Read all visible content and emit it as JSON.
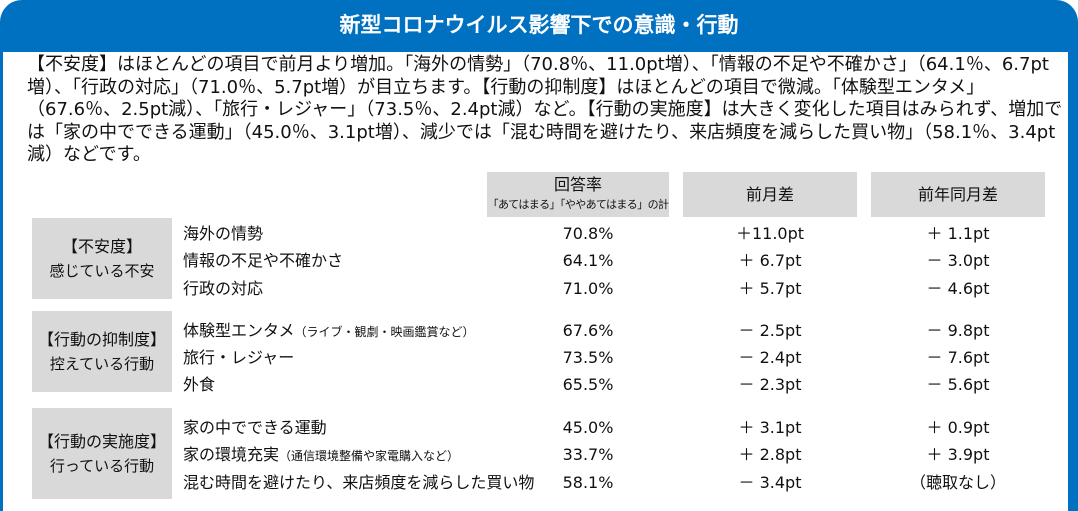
{
  "title": "新型コロナウイルス影響下での意識・行動",
  "summary": "【不安度】はほとんどの項目で前月より増加。「海外の情勢」（70.8％、11.0pt増）、「情報の不足や不確かさ」（64.1％、6.7pt増）、「行政の対応」（71.0％、5.7pt増）が目立ちます。【行動の抑制度】はほとんどの項目で微減。「体験型エンタメ」（67.6％、2.5pt減）、「旅行・レジャー」（73.5％、2.4pt減）など。【行動の実施度】は大きく変化した項目はみられず、増加では「家の中でできる運動」（45.0％、3.1pt増）、減少では「混む時間を避けたり、来店頻度を減らした買い物」（58.1％、3.4pt減）などです。",
  "headers": {
    "rate": "回答率",
    "rate_note": "「あてはまる」「ややあてはまる」の計",
    "mom": "前月差",
    "yoy": "前年同月差"
  },
  "groups": [
    {
      "title": "【不安度】",
      "subtitle": "感じている不安",
      "rows": [
        {
          "item": "海外の情勢",
          "note": "",
          "rate": "70.8%",
          "mom": "＋11.0pt",
          "yoy": "＋ 1.1pt"
        },
        {
          "item": "情報の不足や不確かさ",
          "note": "",
          "rate": "64.1%",
          "mom": "＋ 6.7pt",
          "yoy": "－ 3.0pt"
        },
        {
          "item": "行政の対応",
          "note": "",
          "rate": "71.0%",
          "mom": "＋ 5.7pt",
          "yoy": "－ 4.6pt"
        }
      ]
    },
    {
      "title": "【行動の抑制度】",
      "subtitle": "控えている行動",
      "rows": [
        {
          "item": "体験型エンタメ",
          "note": "（ライブ・観劇・映画鑑賞など）",
          "rate": "67.6%",
          "mom": "－ 2.5pt",
          "yoy": "－ 9.8pt"
        },
        {
          "item": "旅行・レジャー",
          "note": "",
          "rate": "73.5%",
          "mom": "－ 2.4pt",
          "yoy": "－ 7.6pt"
        },
        {
          "item": "外食",
          "note": "",
          "rate": "65.5%",
          "mom": "－ 2.3pt",
          "yoy": "－ 5.6pt"
        }
      ]
    },
    {
      "title": "【行動の実施度】",
      "subtitle": "行っている行動",
      "rows": [
        {
          "item": "家の中でできる運動",
          "note": "",
          "rate": "45.0%",
          "mom": "＋ 3.1pt",
          "yoy": "＋ 0.9pt"
        },
        {
          "item": "家の環境充実",
          "note": "（通信環境整備や家電購入など）",
          "rate": "33.7%",
          "mom": "＋ 2.8pt",
          "yoy": "＋ 3.9pt"
        },
        {
          "item": "混む時間を避けたり、来店頻度を減らした買い物",
          "note": "",
          "rate": "58.1%",
          "mom": "－ 3.4pt",
          "yoy": "（聴取なし）"
        }
      ]
    }
  ]
}
